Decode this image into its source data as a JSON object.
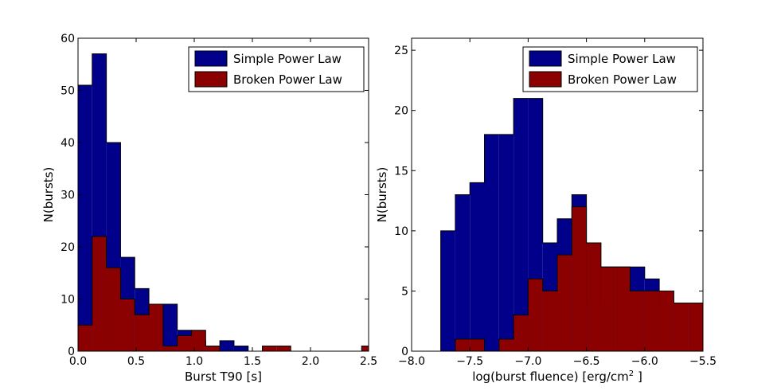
{
  "chart_data": [
    {
      "type": "bar",
      "histogram": true,
      "xlabel": "Burst T90 [s]",
      "ylabel": "N(bursts)",
      "xlim": [
        0.0,
        2.5
      ],
      "ylim": [
        0,
        60
      ],
      "x_ticks": [
        "0.0",
        "0.5",
        "1.0",
        "1.5",
        "2.0",
        "2.5"
      ],
      "y_ticks": [
        "0",
        "10",
        "20",
        "30",
        "40",
        "50",
        "60"
      ],
      "legend_position": "top-right",
      "bin_edges": [
        0.0,
        0.122,
        0.244,
        0.366,
        0.488,
        0.61,
        0.732,
        0.854,
        0.976,
        1.098,
        1.22,
        1.342,
        1.464,
        1.586,
        1.708,
        1.83,
        1.952,
        2.074,
        2.196,
        2.318,
        2.44,
        2.562
      ],
      "series": [
        {
          "name": "Simple Power Law",
          "color": "#00008b",
          "values": [
            51,
            57,
            40,
            18,
            12,
            9,
            9,
            4,
            2,
            1,
            2,
            1,
            0,
            0,
            0,
            0,
            0,
            0,
            0,
            0,
            0
          ]
        },
        {
          "name": "Broken Power Law",
          "color": "#8b0000",
          "values": [
            5,
            22,
            16,
            10,
            7,
            9,
            1,
            3,
            4,
            1,
            0,
            0,
            0,
            1,
            1,
            0,
            0,
            0,
            0,
            0,
            1
          ]
        }
      ]
    },
    {
      "type": "bar",
      "histogram": true,
      "xlabel": "log(burst fluence) [erg/cm",
      "xlabel_sup": "2",
      "xlabel_end": " ]",
      "ylabel": "N(bursts)",
      "xlim": [
        -8.0,
        -5.5
      ],
      "ylim": [
        0,
        26
      ],
      "x_ticks": [
        "−8.0",
        "−7.5",
        "−7.0",
        "−6.5",
        "−6.0",
        "−5.5"
      ],
      "y_ticks": [
        "0",
        "5",
        "10",
        "15",
        "20",
        "25"
      ],
      "legend_position": "top-right",
      "bin_edges": [
        -7.75,
        -7.625,
        -7.5,
        -7.375,
        -7.25,
        -7.125,
        -7.0,
        -6.875,
        -6.75,
        -6.625,
        -6.5,
        -6.375,
        -6.25,
        -6.125,
        -6.0,
        -5.875,
        -5.75,
        -5.625,
        -5.5
      ],
      "series": [
        {
          "name": "Simple Power Law",
          "color": "#00008b",
          "values": [
            10,
            13,
            14,
            18,
            18,
            21,
            21,
            9,
            11,
            13,
            4,
            7,
            7,
            7,
            6,
            4,
            4,
            4
          ]
        },
        {
          "name": "Broken Power Law",
          "color": "#8b0000",
          "values": [
            0,
            1,
            1,
            0,
            1,
            3,
            6,
            5,
            8,
            12,
            9,
            7,
            7,
            5,
            5,
            5,
            4,
            4
          ]
        }
      ]
    }
  ]
}
